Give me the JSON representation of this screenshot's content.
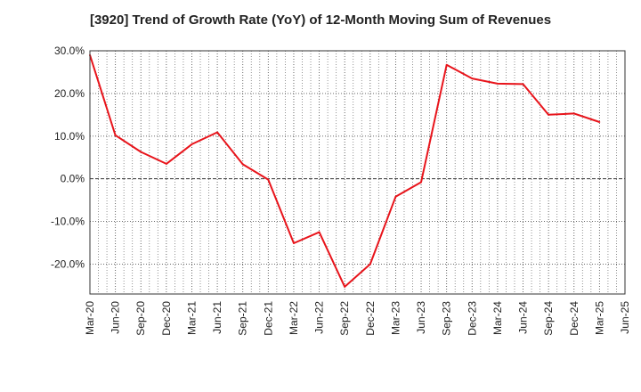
{
  "chart_data": {
    "type": "line",
    "title": "[3920]  Trend of Growth Rate (YoY) of 12-Month Moving Sum of Revenues",
    "xlabel": "",
    "ylabel": "",
    "x_tick_labels": [
      "Mar-20",
      "Jun-20",
      "Sep-20",
      "Dec-20",
      "Mar-21",
      "Jun-21",
      "Sep-21",
      "Dec-21",
      "Mar-22",
      "Jun-22",
      "Sep-22",
      "Dec-22",
      "Mar-23",
      "Jun-23",
      "Sep-23",
      "Dec-23",
      "Mar-24",
      "Jun-24",
      "Sep-24",
      "Dec-24",
      "Mar-25",
      "Jun-25"
    ],
    "y_ticks": [
      30,
      20,
      10,
      0,
      -10,
      -20
    ],
    "y_tick_labels": [
      "30.0%",
      "20.0%",
      "10.0%",
      "0.0%",
      "-10.0%",
      "-20.0%"
    ],
    "ylim": [
      -27,
      30
    ],
    "grid": true,
    "series": [
      {
        "color": "#e8141b",
        "x": [
          "Mar-20",
          "Jun-20",
          "Sep-20",
          "Dec-20",
          "Mar-21",
          "Jun-21",
          "Sep-21",
          "Dec-21",
          "Mar-22",
          "Jun-22",
          "Sep-22",
          "Dec-22",
          "Mar-23",
          "Jun-23",
          "Sep-23",
          "Dec-23",
          "Mar-24",
          "Jun-24",
          "Sep-24",
          "Dec-24",
          "Mar-25"
        ],
        "values": [
          29.0,
          10.2,
          6.3,
          3.5,
          8.1,
          10.9,
          3.4,
          -0.2,
          -15.1,
          -12.5,
          -25.3,
          -20.0,
          -4.2,
          -0.8,
          26.7,
          23.5,
          22.3,
          22.2,
          15.0,
          15.3,
          13.3
        ]
      }
    ]
  }
}
